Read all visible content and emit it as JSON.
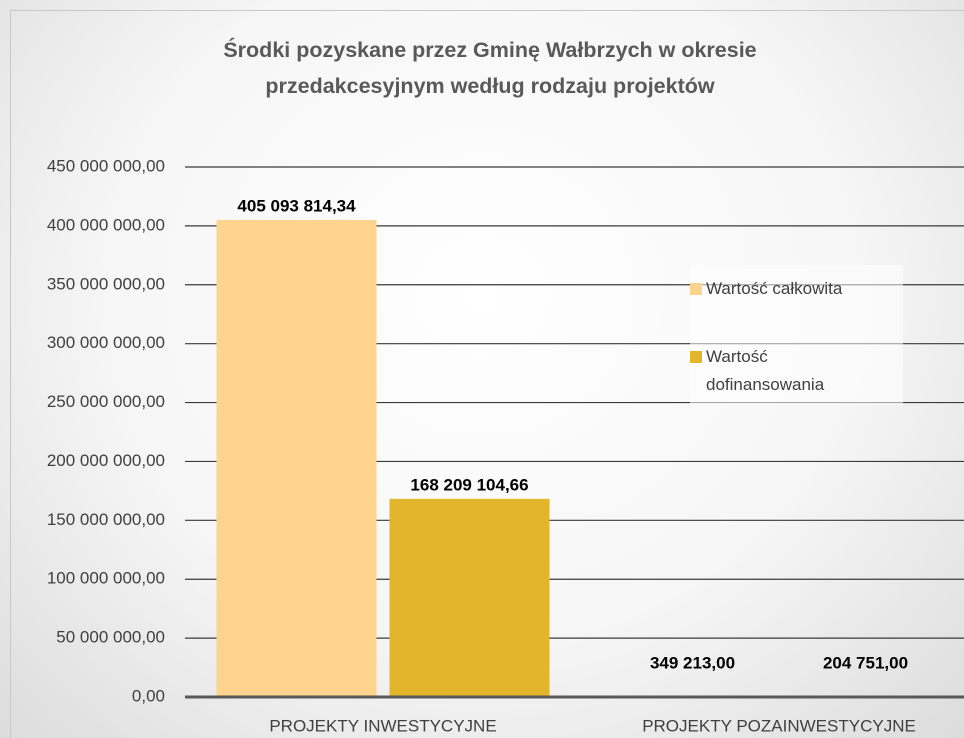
{
  "chart_data": {
    "type": "bar",
    "title": "Środki pozyskane przez Gminę Wałbrzych w okresie przedakcesyjnym według rodzaju projektów",
    "categories": [
      "PROJEKTY INWESTYCYJNE",
      "PROJEKTY POZAINWESTYCYJNE"
    ],
    "series": [
      {
        "name": "Wartość całkowita",
        "color": "#fdd38e",
        "values": [
          405093814.34,
          349213
        ],
        "value_labels": [
          "405 093 814,34",
          "349 213,00"
        ]
      },
      {
        "name": "Wartość dofinansowania",
        "color": "#e3b52a",
        "values": [
          168209104.66,
          204751
        ],
        "value_labels": [
          "168 209 104,66",
          "204 751,00"
        ]
      }
    ],
    "ylim": [
      0,
      450000000
    ],
    "yticks": [
      {
        "value": 0,
        "label": "0,00"
      },
      {
        "value": 50000000,
        "label": "50 000 000,00"
      },
      {
        "value": 100000000,
        "label": "100 000 000,00"
      },
      {
        "value": 150000000,
        "label": "150 000 000,00"
      },
      {
        "value": 200000000,
        "label": "200 000 000,00"
      },
      {
        "value": 250000000,
        "label": "250 000 000,00"
      },
      {
        "value": 300000000,
        "label": "300 000 000,00"
      },
      {
        "value": 350000000,
        "label": "350 000 000,00"
      },
      {
        "value": 400000000,
        "label": "400 000 000,00"
      },
      {
        "value": 450000000,
        "label": "450 000 000,00"
      }
    ],
    "grid": true,
    "legend": "right"
  }
}
